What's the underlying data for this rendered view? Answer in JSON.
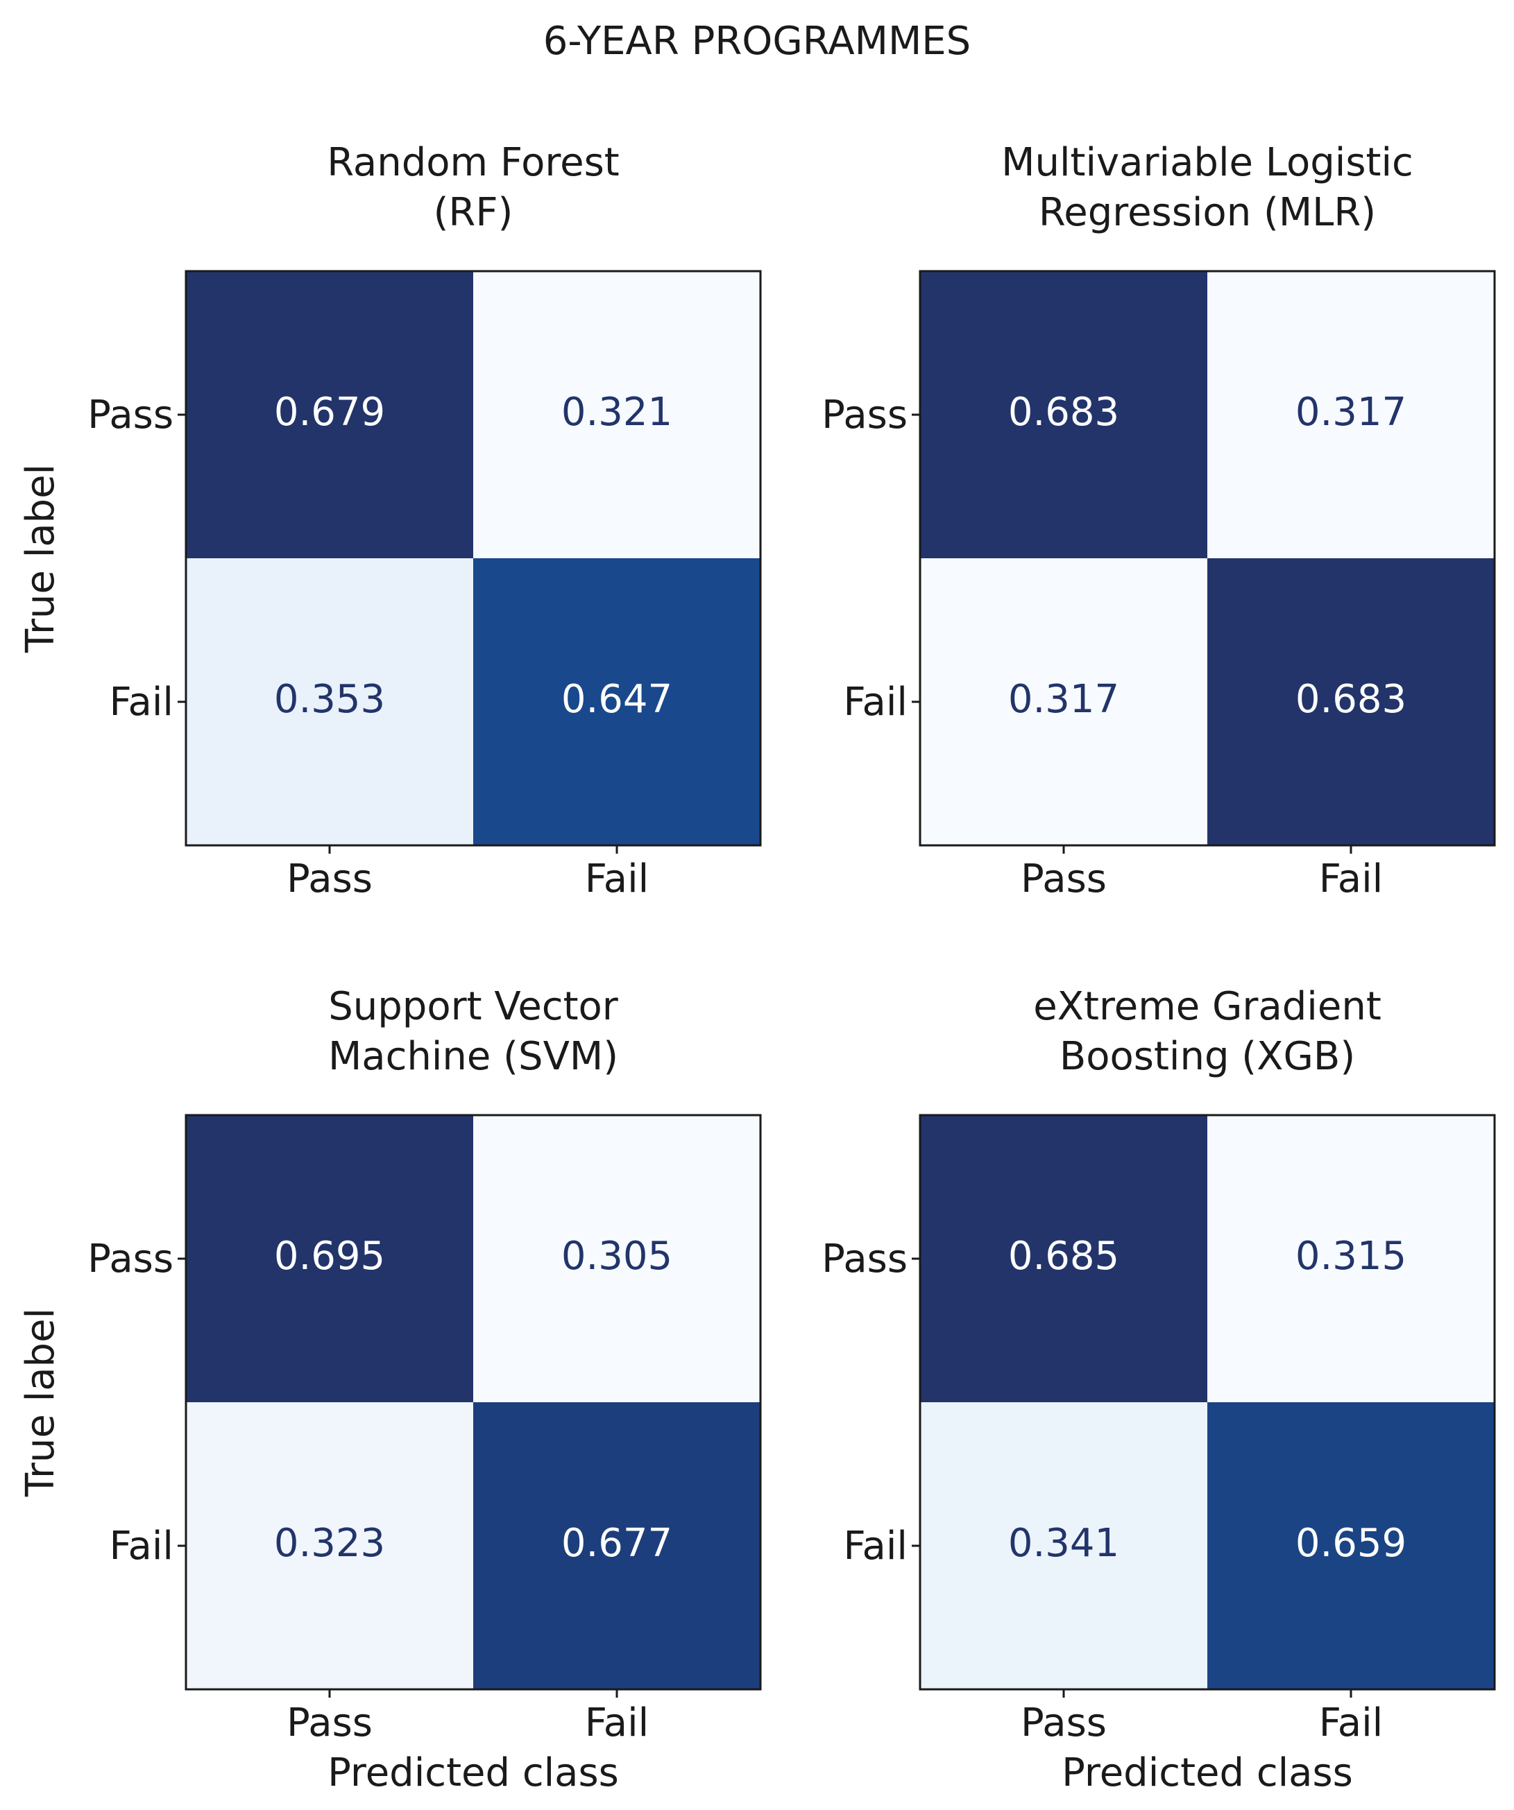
{
  "title": "6-YEAR PROGRAMMES",
  "colormap": [
    "#f7fbff",
    "#e3eef8",
    "#c6dbef",
    "#9ecae1",
    "#6baed6",
    "#4292c6",
    "#2a6fb0",
    "#15509a",
    "#22346a"
  ],
  "text_colors": {
    "dark": "#ffffff",
    "light": "#22346a"
  },
  "chart_data": [
    {
      "type": "heatmap",
      "title": [
        "Random Forest",
        "(RF)"
      ],
      "ylabel": "True label",
      "x_categories": [
        "Pass",
        "Fail"
      ],
      "y_categories": [
        "Pass",
        "Fail"
      ],
      "values": [
        [
          0.679,
          0.321
        ],
        [
          0.353,
          0.647
        ]
      ]
    },
    {
      "type": "heatmap",
      "title": [
        "Multivariable Logistic",
        "Regression (MLR)"
      ],
      "x_categories": [
        "Pass",
        "Fail"
      ],
      "y_categories": [
        "Pass",
        "Fail"
      ],
      "values": [
        [
          0.683,
          0.317
        ],
        [
          0.317,
          0.683
        ]
      ]
    },
    {
      "type": "heatmap",
      "title": [
        "Support Vector",
        "Machine (SVM)"
      ],
      "ylabel": "True label",
      "xlabel": "Predicted class",
      "x_categories": [
        "Pass",
        "Fail"
      ],
      "y_categories": [
        "Pass",
        "Fail"
      ],
      "values": [
        [
          0.695,
          0.305
        ],
        [
          0.323,
          0.677
        ]
      ]
    },
    {
      "type": "heatmap",
      "title": [
        "eXtreme Gradient",
        "Boosting (XGB)"
      ],
      "xlabel": "Predicted class",
      "x_categories": [
        "Pass",
        "Fail"
      ],
      "y_categories": [
        "Pass",
        "Fail"
      ],
      "values": [
        [
          0.685,
          0.315
        ],
        [
          0.341,
          0.659
        ]
      ]
    }
  ]
}
